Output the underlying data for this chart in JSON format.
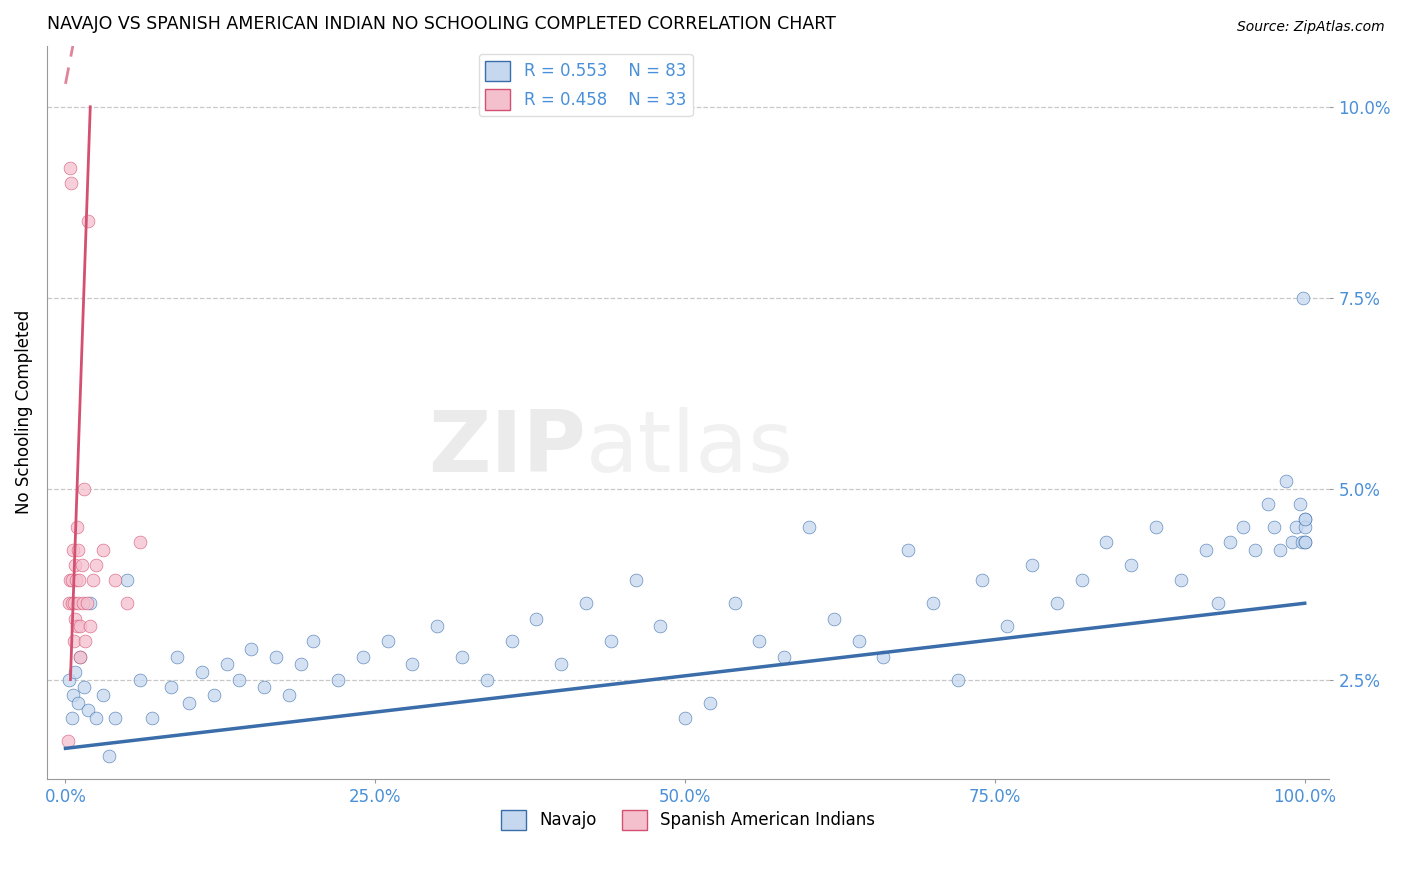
{
  "title": "NAVAJO VS SPANISH AMERICAN INDIAN NO SCHOOLING COMPLETED CORRELATION CHART",
  "source": "Source: ZipAtlas.com",
  "ylabel": "No Schooling Completed",
  "watermark": "ZIPatlas",
  "navajo_R": 0.553,
  "navajo_N": 83,
  "spanish_R": 0.458,
  "spanish_N": 33,
  "xlim": [
    -1.5,
    102.0
  ],
  "ylim": [
    1.2,
    10.8
  ],
  "ytick_vals": [
    2.5,
    5.0,
    7.5,
    10.0
  ],
  "xtick_vals": [
    0.0,
    25.0,
    50.0,
    75.0,
    100.0
  ],
  "navajo_color": "#c5d8f0",
  "navajo_line_color": "#3a6daa",
  "navajo_edge_color": "#3a6daa",
  "spanish_color": "#f5c0ce",
  "spanish_line_color": "#d45070",
  "spanish_edge_color": "#d45070",
  "navajo_x": [
    0.3,
    0.5,
    0.6,
    0.8,
    1.0,
    1.2,
    1.5,
    1.8,
    2.0,
    2.5,
    3.0,
    3.5,
    4.0,
    5.0,
    6.0,
    7.0,
    8.5,
    9.0,
    10.0,
    11.0,
    12.0,
    13.0,
    14.0,
    15.0,
    16.0,
    17.0,
    18.0,
    19.0,
    20.0,
    22.0,
    24.0,
    26.0,
    28.0,
    30.0,
    32.0,
    34.0,
    36.0,
    38.0,
    40.0,
    42.0,
    44.0,
    46.0,
    48.0,
    50.0,
    52.0,
    54.0,
    56.0,
    58.0,
    60.0,
    62.0,
    64.0,
    66.0,
    68.0,
    70.0,
    72.0,
    74.0,
    76.0,
    78.0,
    80.0,
    82.0,
    84.0,
    86.0,
    88.0,
    90.0,
    92.0,
    93.0,
    94.0,
    95.0,
    96.0,
    97.0,
    97.5,
    98.0,
    98.5,
    99.0,
    99.3,
    99.6,
    99.8,
    99.9,
    100.0,
    100.0,
    100.0,
    100.0,
    100.0
  ],
  "navajo_y": [
    2.5,
    2.0,
    2.3,
    2.6,
    2.2,
    2.8,
    2.4,
    2.1,
    3.5,
    2.0,
    2.3,
    1.5,
    2.0,
    3.8,
    2.5,
    2.0,
    2.4,
    2.8,
    2.2,
    2.6,
    2.3,
    2.7,
    2.5,
    2.9,
    2.4,
    2.8,
    2.3,
    2.7,
    3.0,
    2.5,
    2.8,
    3.0,
    2.7,
    3.2,
    2.8,
    2.5,
    3.0,
    3.3,
    2.7,
    3.5,
    3.0,
    3.8,
    3.2,
    2.0,
    2.2,
    3.5,
    3.0,
    2.8,
    4.5,
    3.3,
    3.0,
    2.8,
    4.2,
    3.5,
    2.5,
    3.8,
    3.2,
    4.0,
    3.5,
    3.8,
    4.3,
    4.0,
    4.5,
    3.8,
    4.2,
    3.5,
    4.3,
    4.5,
    4.2,
    4.8,
    4.5,
    4.2,
    5.1,
    4.3,
    4.5,
    4.8,
    4.3,
    7.5,
    4.3,
    4.6,
    4.5,
    4.3,
    4.6
  ],
  "spanish_x": [
    0.2,
    0.3,
    0.35,
    0.4,
    0.45,
    0.5,
    0.55,
    0.6,
    0.65,
    0.7,
    0.75,
    0.8,
    0.85,
    0.9,
    0.95,
    1.0,
    1.05,
    1.1,
    1.15,
    1.2,
    1.3,
    1.4,
    1.5,
    1.6,
    1.7,
    1.8,
    2.0,
    2.2,
    2.5,
    3.0,
    4.0,
    5.0,
    6.0
  ],
  "spanish_y": [
    1.7,
    3.5,
    3.8,
    9.2,
    9.0,
    3.8,
    3.5,
    4.2,
    3.0,
    3.5,
    4.0,
    3.3,
    3.8,
    4.5,
    3.2,
    4.2,
    3.5,
    3.8,
    2.8,
    3.2,
    4.0,
    3.5,
    5.0,
    3.0,
    3.5,
    8.5,
    3.2,
    3.8,
    4.0,
    4.2,
    3.8,
    3.5,
    4.3
  ],
  "sp_line_x0": 0.0,
  "sp_line_x1": 6.0,
  "sp_line_y0": 1.5,
  "sp_line_y1": 10.0,
  "sp_dash_x0": 0.0,
  "sp_dash_x1": 2.0,
  "nav_line_x0": 0.0,
  "nav_line_x1": 100.0,
  "nav_line_y0": 1.6,
  "nav_line_y1": 3.5
}
